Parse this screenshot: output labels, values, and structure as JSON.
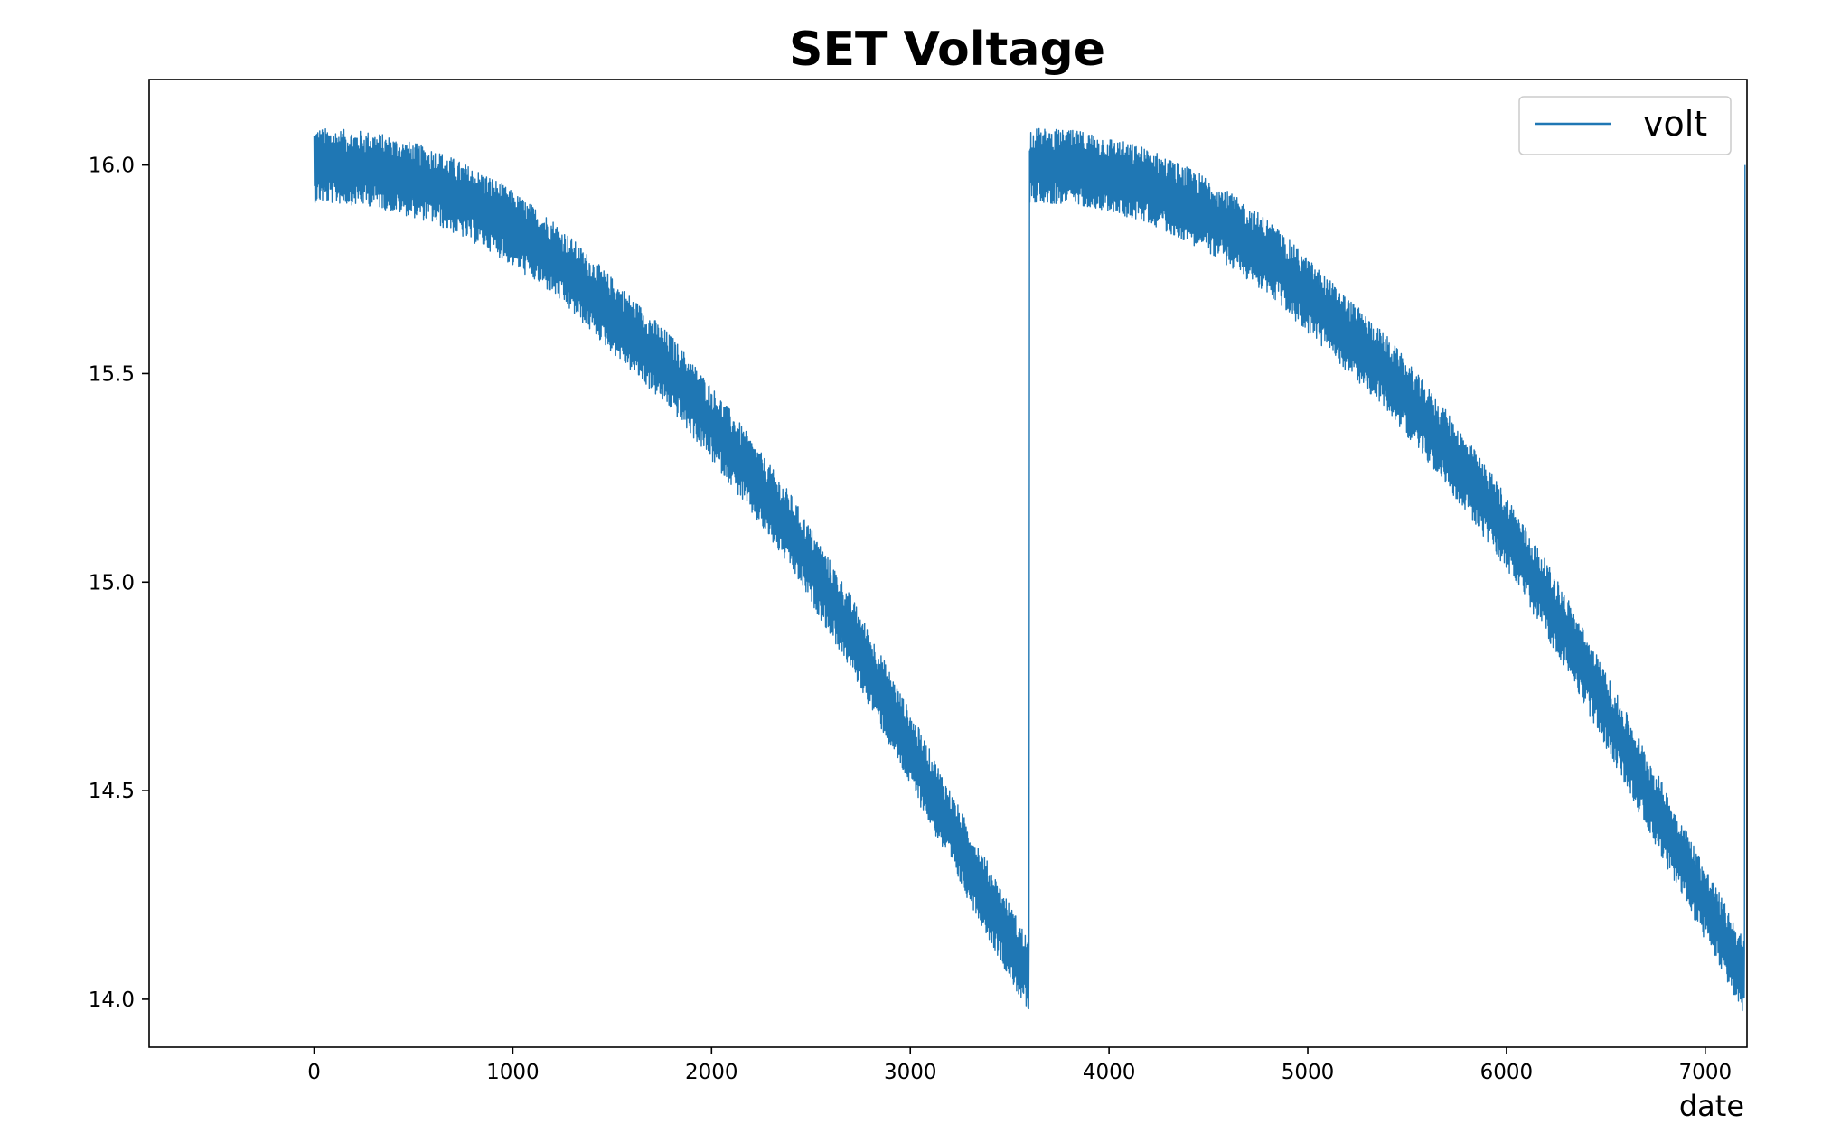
{
  "chart_data": {
    "type": "line",
    "title": "SET Voltage",
    "xlabel": "date",
    "ylabel": "",
    "xlim": [
      -830,
      7210
    ],
    "ylim": [
      13.885,
      16.205
    ],
    "x_ticks": [
      0,
      1000,
      2000,
      3000,
      4000,
      5000,
      6000,
      7000
    ],
    "y_ticks": [
      14.0,
      14.5,
      15.0,
      15.5,
      16.0
    ],
    "x_tick_labels": [
      "0",
      "1000",
      "2000",
      "3000",
      "4000",
      "5000",
      "6000",
      "7000"
    ],
    "y_tick_labels": [
      "14.0",
      "14.5",
      "15.0",
      "15.5",
      "16.0"
    ],
    "grid": false,
    "legend_position": "upper right",
    "series": [
      {
        "name": "volt",
        "color": "#1f77b4",
        "x": [
          0,
          300,
          600,
          900,
          1200,
          1500,
          1800,
          2100,
          2400,
          2700,
          3000,
          3300,
          3599,
          3600,
          3900,
          4200,
          4500,
          4800,
          5100,
          5400,
          5700,
          6000,
          6300,
          6600,
          6900,
          7199,
          7200
        ],
        "y": [
          16.0,
          15.99,
          15.95,
          15.88,
          15.78,
          15.64,
          15.5,
          15.32,
          15.12,
          14.88,
          14.6,
          14.32,
          14.05,
          16.0,
          15.99,
          15.95,
          15.88,
          15.78,
          15.64,
          15.5,
          15.32,
          15.12,
          14.88,
          14.6,
          14.32,
          14.05,
          16.0
        ],
        "noise_band": 0.09
      }
    ]
  }
}
